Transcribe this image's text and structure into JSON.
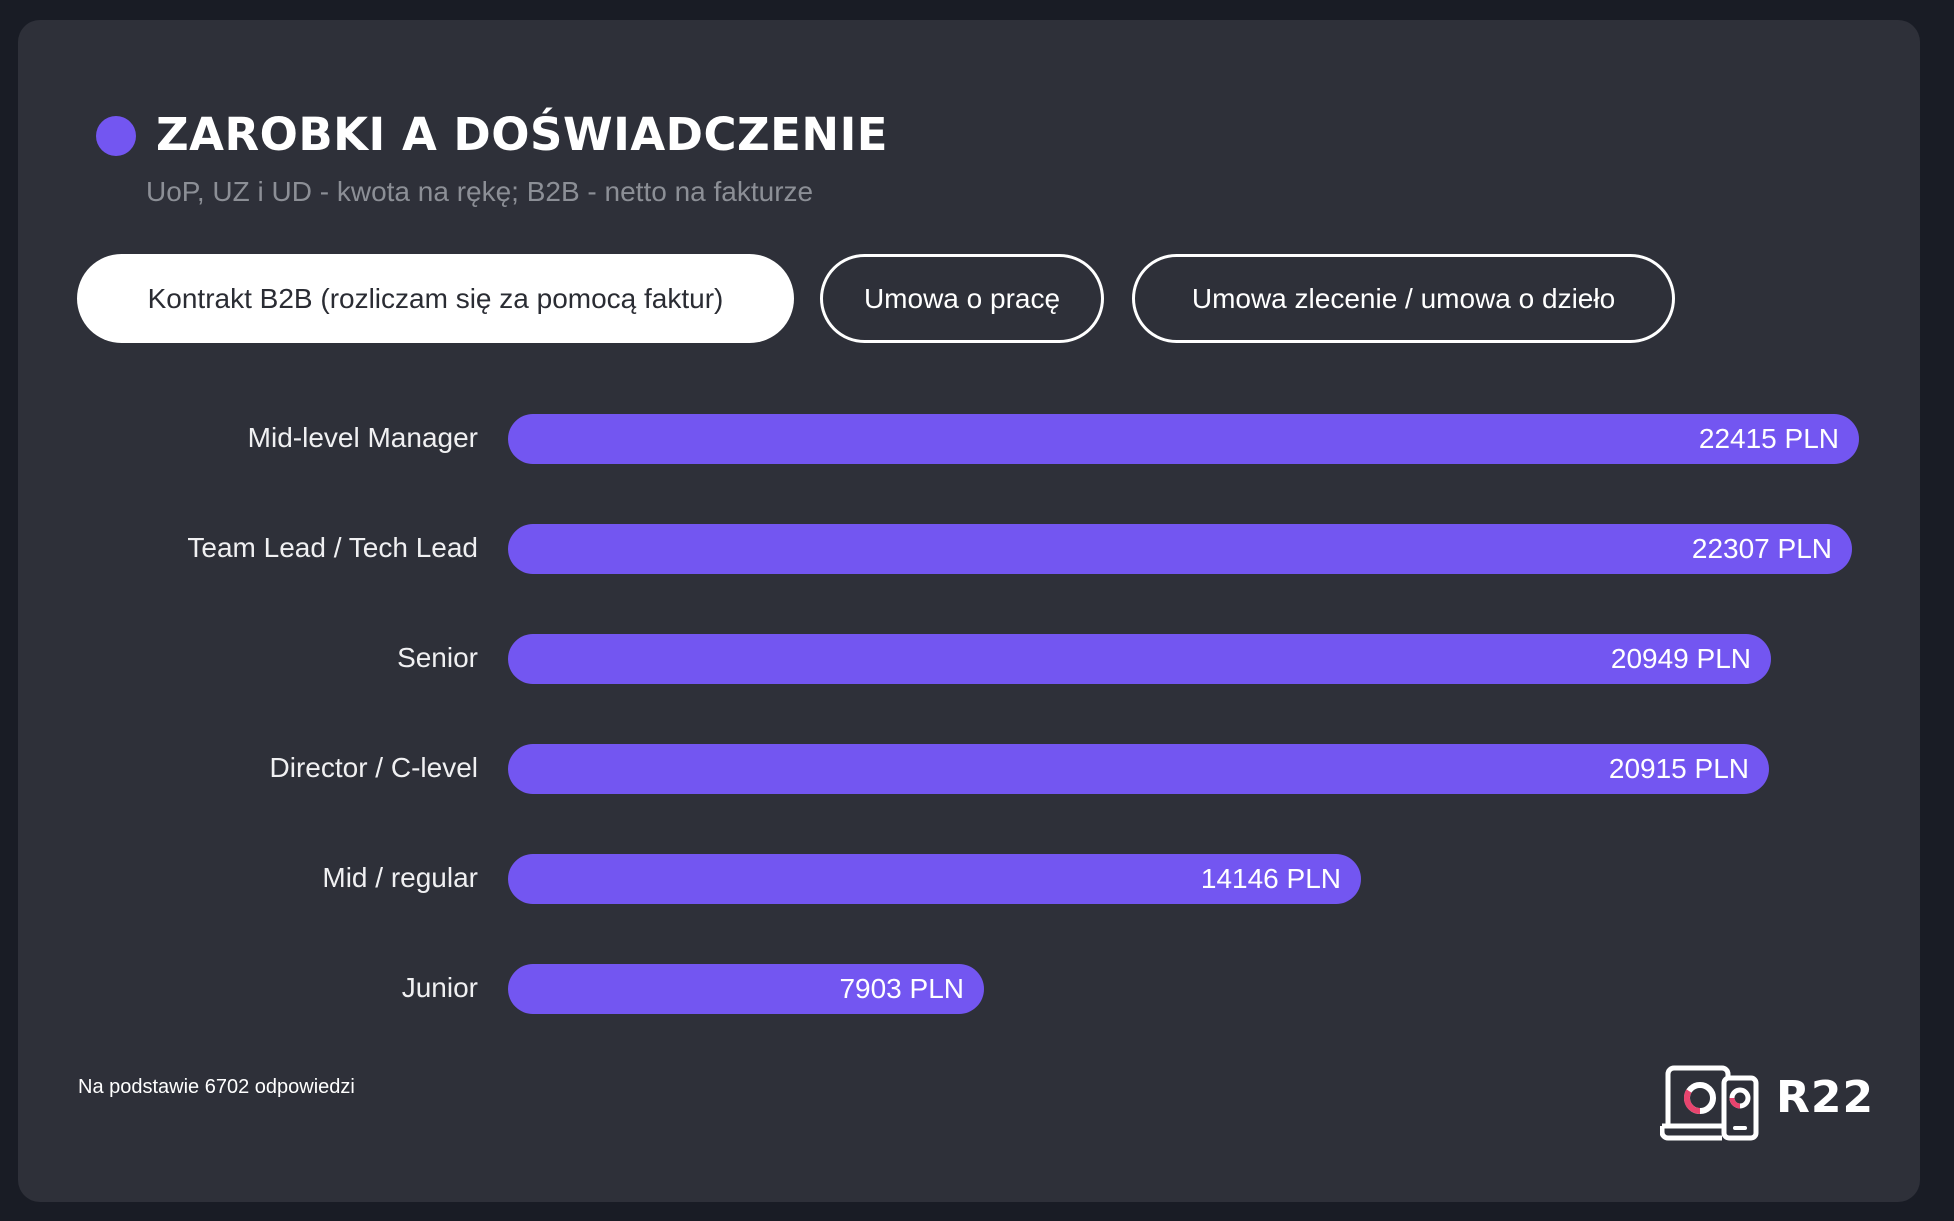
{
  "header": {
    "title": "ZAROBKI A DOŚWIADCZENIE",
    "subtitle": "UoP, UZ i UD - kwota na rękę; B2B - netto na fakturze",
    "accent_color": "#7356f1"
  },
  "tabs": [
    {
      "label": "Kontrakt B2B (rozliczam się za pomocą faktur)",
      "active": true
    },
    {
      "label": "Umowa o pracę",
      "active": false
    },
    {
      "label": "Umowa zlecenie / umowa o dzieło",
      "active": false
    }
  ],
  "chart_data": {
    "type": "bar",
    "orientation": "horizontal",
    "title": "ZAROBKI A DOŚWIADCZENIE",
    "subtitle": "UoP, UZ i UD - kwota na rękę; B2B - netto na fakturze",
    "selected_series": "Kontrakt B2B (rozliczam się za pomocą faktur)",
    "categories": [
      "Mid-level Manager",
      "Team Lead / Tech Lead",
      "Senior",
      "Director / C-level",
      "Mid / regular",
      "Junior"
    ],
    "values": [
      22415,
      22307,
      20949,
      20915,
      14146,
      7903
    ],
    "value_labels": [
      "22415 PLN",
      "22307 PLN",
      "20949 PLN",
      "20915 PLN",
      "14146 PLN",
      "7903 PLN"
    ],
    "unit": "PLN",
    "xlabel": "",
    "ylabel": "",
    "grid": false,
    "bar_color": "#7356f1"
  },
  "footer": {
    "note": "Na podstawie 6702 odpowiedzi",
    "logo_text": "R22",
    "logo_icon": "laptop-phone-donut-icon",
    "logo_accent": "#e8446e"
  }
}
